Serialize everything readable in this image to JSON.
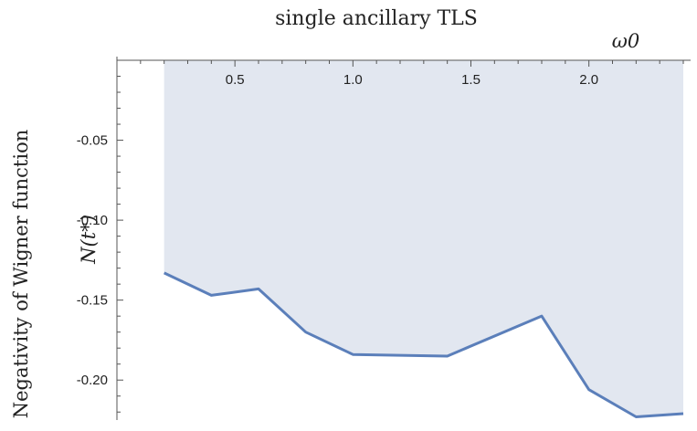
{
  "chart_data": {
    "type": "area",
    "title": "single ancillary TLS",
    "xlabel": "ω0",
    "ylabel": "Negativity of Wigner function",
    "ylabel_sub": "N(t*)",
    "xlim": [
      0.0,
      2.4
    ],
    "ylim": [
      -0.225,
      -0.0
    ],
    "x_ticks": [
      0.5,
      1.0,
      1.5,
      2.0
    ],
    "x_tick_labels": [
      "0.5",
      "1.0",
      "1.5",
      "2.0"
    ],
    "y_ticks": [
      -0.05,
      -0.1,
      -0.15,
      -0.2
    ],
    "y_tick_labels": [
      "-0.05",
      "-0.10",
      "-0.15",
      "-0.20"
    ],
    "grid": false,
    "series": [
      {
        "x": [
          0.2,
          0.4,
          0.6,
          0.8,
          1.0,
          1.4,
          1.8,
          2.0,
          2.2,
          2.4
        ],
        "y": [
          -0.133,
          -0.147,
          -0.143,
          -0.17,
          -0.184,
          -0.185,
          -0.16,
          -0.206,
          -0.223,
          -0.221
        ]
      }
    ],
    "colors": {
      "line": "#5b7fba",
      "fill": "#e2e7f0",
      "axis": "#555555"
    }
  }
}
